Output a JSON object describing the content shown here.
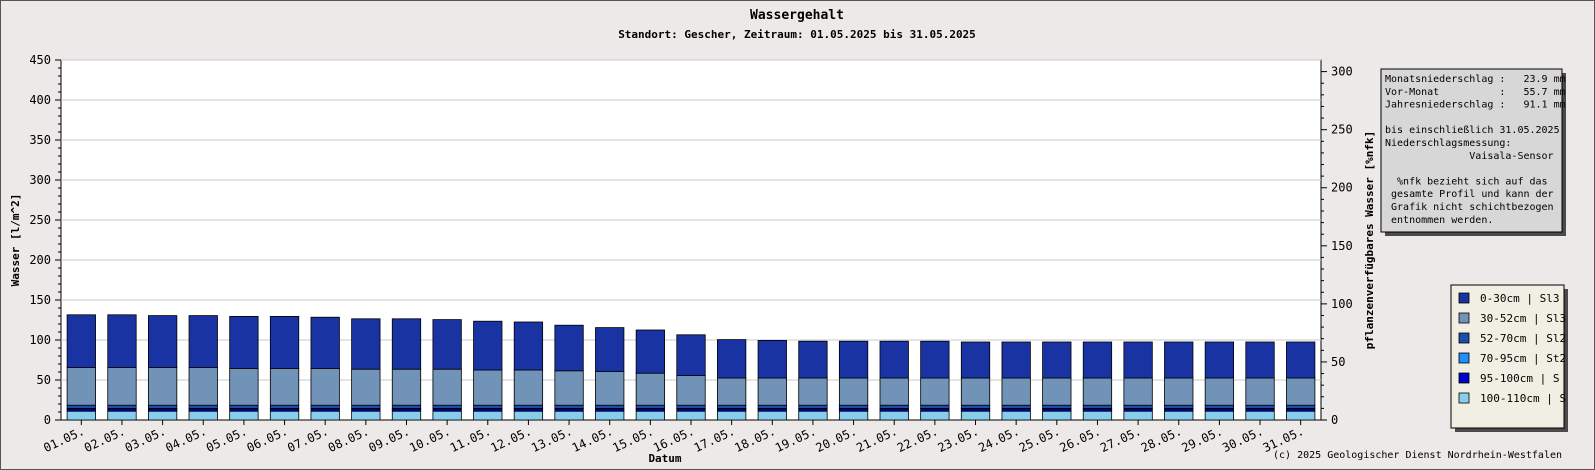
{
  "chart_data": {
    "type": "bar",
    "stacked": true,
    "title": "Wassergehalt",
    "subtitle": "Standort: Gescher, Zeitraum: 01.05.2025 bis 31.05.2025",
    "xlabel": "Datum",
    "ylabel": "Wasser [l/m^2]",
    "ylabel_right": "pflanzenverfügbares Wasser [%nfk]",
    "ylim": [
      0,
      450
    ],
    "yticks": [
      0,
      50,
      100,
      150,
      200,
      250,
      300,
      350,
      400,
      450
    ],
    "ylim_right": [
      0,
      310
    ],
    "yticks_right": [
      0,
      50,
      100,
      150,
      200,
      250,
      300
    ],
    "grid": true,
    "legend_position": "right",
    "copyright": "(c) 2025 Geologischer Dienst Nordrhein-Westfalen",
    "categories": [
      "01.05.",
      "02.05.",
      "03.05.",
      "04.05.",
      "05.05.",
      "06.05.",
      "07.05.",
      "08.05.",
      "09.05.",
      "10.05.",
      "11.05.",
      "12.05.",
      "13.05.",
      "14.05.",
      "15.05.",
      "16.05.",
      "17.05.",
      "18.05.",
      "19.05.",
      "20.05.",
      "21.05.",
      "22.05.",
      "23.05.",
      "24.05.",
      "25.05.",
      "26.05.",
      "27.05.",
      "28.05.",
      "29.05.",
      "30.05.",
      "31.05."
    ],
    "series": [
      {
        "name": "100-110cm | S",
        "color": "#87ceeb",
        "values": [
          11,
          11,
          11,
          11,
          11,
          11,
          11,
          11,
          11,
          11,
          11,
          11,
          11,
          11,
          11,
          11,
          11,
          11,
          11,
          11,
          11,
          11,
          11,
          11,
          11,
          11,
          11,
          11,
          11,
          11,
          11
        ]
      },
      {
        "name": "95-100cm | S",
        "color": "#0000cd",
        "values": [
          3,
          3,
          3,
          3,
          3,
          3,
          3,
          3,
          3,
          3,
          3,
          3,
          3,
          3,
          3,
          3,
          3,
          3,
          3,
          3,
          3,
          3,
          3,
          3,
          3,
          3,
          3,
          3,
          3,
          3,
          3
        ]
      },
      {
        "name": "70-95cm | St2",
        "color": "#1e90ff",
        "values": [
          0.5,
          0.5,
          0.5,
          0.5,
          0.5,
          0.5,
          0.5,
          0.5,
          0.5,
          0.5,
          0.5,
          0.5,
          0.5,
          0.5,
          0.5,
          0.5,
          0.5,
          0.5,
          0.5,
          0.5,
          0.5,
          0.5,
          0.5,
          0.5,
          0.5,
          0.5,
          0.5,
          0.5,
          0.5,
          0.5,
          0.5
        ]
      },
      {
        "name": "52-70cm | Sl2",
        "color": "#1a4fa8",
        "values": [
          4,
          4,
          4,
          4,
          4,
          4,
          4,
          4,
          4,
          4,
          4,
          4,
          4,
          4,
          4,
          4,
          4,
          4,
          4,
          4,
          4,
          4,
          4,
          4,
          4,
          4,
          4,
          4,
          4,
          4,
          4
        ]
      },
      {
        "name": "30-52cm | Sl3",
        "color": "#7193b7",
        "values": [
          47,
          47,
          47,
          47,
          46,
          46,
          46,
          45,
          45,
          45,
          44,
          44,
          43,
          42,
          40,
          37,
          34,
          34,
          34,
          34,
          34,
          34,
          34,
          34,
          34,
          34,
          34,
          34,
          34,
          34,
          34
        ]
      },
      {
        "name": "0-30cm | Sl3",
        "color": "#1a33a3",
        "values": [
          66,
          66,
          65,
          65,
          65,
          65,
          64,
          63,
          63,
          62,
          61,
          60,
          57,
          55,
          54,
          51,
          48,
          47,
          46,
          46,
          46,
          46,
          45,
          45,
          45,
          45,
          45,
          45,
          45,
          45,
          45
        ]
      }
    ],
    "legend_order": [
      "0-30cm | Sl3",
      "30-52cm | Sl3",
      "52-70cm | Sl2",
      "70-95cm | St2",
      "95-100cm | S",
      "100-110cm | S"
    ],
    "info_box": {
      "lines": [
        "Monatsniederschlag :   23.9 mm",
        "Vor-Monat          :   55.7 mm",
        "Jahresniederschlag :   91.1 mm",
        "",
        "bis einschließlich 31.05.2025",
        "Niederschlagsmessung:",
        "              Vaisala-Sensor",
        "",
        "  %nfk bezieht sich auf das",
        " gesamte Profil und kann der",
        " Grafik nicht schichtbezogen",
        " entnommen werden."
      ]
    }
  }
}
